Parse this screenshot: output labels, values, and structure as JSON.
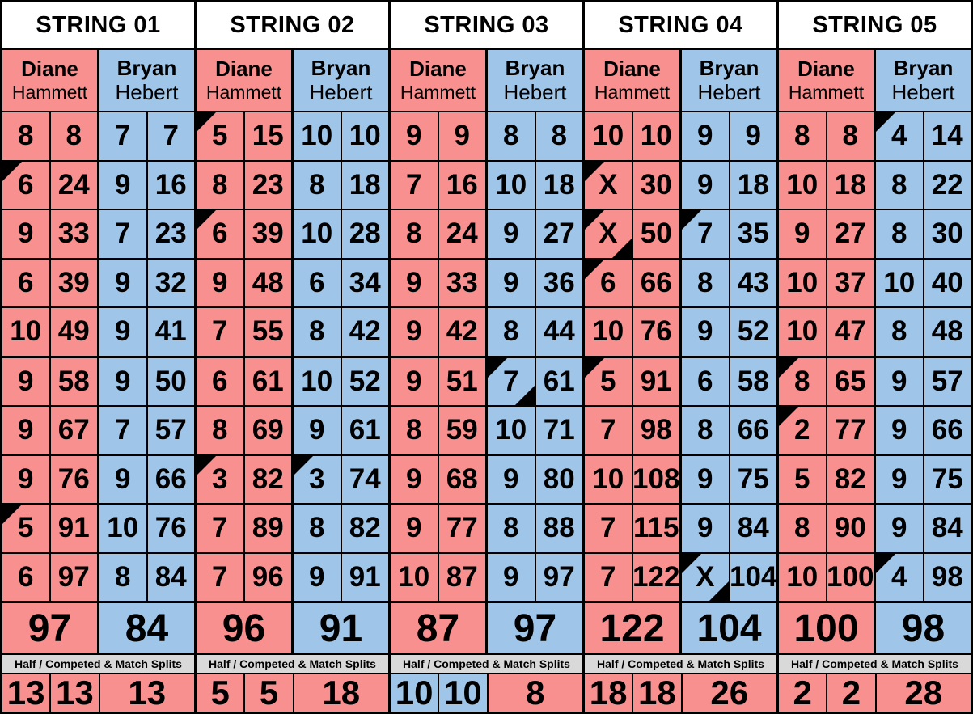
{
  "sheet": {
    "half_label": "Half / Competed & Match Splits",
    "colors": {
      "diane_pink": "#F8908F",
      "bryan_blue": "#9FC5E8",
      "strip_gray": "#D9D9D9",
      "header_white": "#FFFFFF",
      "grid_black": "#000000"
    },
    "strings": [
      {
        "title": "STRING 01",
        "players": [
          {
            "first": "Diane",
            "last": "Hammett",
            "color": "pink",
            "total": "97",
            "frames": [
              {
                "s": "8",
                "t": "8"
              },
              {
                "s": "6",
                "t": "24",
                "c": "tl"
              },
              {
                "s": "9",
                "t": "33"
              },
              {
                "s": "6",
                "t": "39"
              },
              {
                "s": "10",
                "t": "49"
              },
              {
                "s": "9",
                "t": "58"
              },
              {
                "s": "9",
                "t": "67"
              },
              {
                "s": "9",
                "t": "76"
              },
              {
                "s": "5",
                "t": "91",
                "c": "tl"
              },
              {
                "s": "6",
                "t": "97"
              }
            ]
          },
          {
            "first": "Bryan",
            "last": "Hebert",
            "color": "blue",
            "total": "84",
            "frames": [
              {
                "s": "7",
                "t": "7"
              },
              {
                "s": "9",
                "t": "16"
              },
              {
                "s": "7",
                "t": "23"
              },
              {
                "s": "9",
                "t": "32"
              },
              {
                "s": "9",
                "t": "41"
              },
              {
                "s": "9",
                "t": "50"
              },
              {
                "s": "7",
                "t": "57"
              },
              {
                "s": "9",
                "t": "66"
              },
              {
                "s": "10",
                "t": "76"
              },
              {
                "s": "8",
                "t": "84"
              }
            ]
          }
        ],
        "bottom": [
          {
            "v": "13",
            "color": "pink"
          },
          {
            "v": "13",
            "color": "pink"
          },
          {
            "v": "13",
            "color": "pink"
          }
        ]
      },
      {
        "title": "STRING 02",
        "players": [
          {
            "first": "Diane",
            "last": "Hammett",
            "color": "pink",
            "total": "96",
            "frames": [
              {
                "s": "5",
                "t": "15",
                "c": "tl"
              },
              {
                "s": "8",
                "t": "23"
              },
              {
                "s": "6",
                "t": "39",
                "c": "tl"
              },
              {
                "s": "9",
                "t": "48"
              },
              {
                "s": "7",
                "t": "55"
              },
              {
                "s": "6",
                "t": "61"
              },
              {
                "s": "8",
                "t": "69"
              },
              {
                "s": "3",
                "t": "82",
                "c": "tl"
              },
              {
                "s": "7",
                "t": "89"
              },
              {
                "s": "7",
                "t": "96"
              }
            ]
          },
          {
            "first": "Bryan",
            "last": "Hebert",
            "color": "blue",
            "total": "91",
            "frames": [
              {
                "s": "10",
                "t": "10"
              },
              {
                "s": "8",
                "t": "18"
              },
              {
                "s": "10",
                "t": "28"
              },
              {
                "s": "6",
                "t": "34"
              },
              {
                "s": "8",
                "t": "42"
              },
              {
                "s": "10",
                "t": "52"
              },
              {
                "s": "9",
                "t": "61"
              },
              {
                "s": "3",
                "t": "74",
                "c": "tl"
              },
              {
                "s": "8",
                "t": "82"
              },
              {
                "s": "9",
                "t": "91"
              }
            ]
          }
        ],
        "bottom": [
          {
            "v": "5",
            "color": "pink"
          },
          {
            "v": "5",
            "color": "pink"
          },
          {
            "v": "18",
            "color": "pink"
          }
        ]
      },
      {
        "title": "STRING 03",
        "players": [
          {
            "first": "Diane",
            "last": "Hammett",
            "color": "pink",
            "total": "87",
            "frames": [
              {
                "s": "9",
                "t": "9"
              },
              {
                "s": "7",
                "t": "16"
              },
              {
                "s": "8",
                "t": "24"
              },
              {
                "s": "9",
                "t": "33"
              },
              {
                "s": "9",
                "t": "42"
              },
              {
                "s": "9",
                "t": "51"
              },
              {
                "s": "8",
                "t": "59"
              },
              {
                "s": "9",
                "t": "68"
              },
              {
                "s": "9",
                "t": "77"
              },
              {
                "s": "10",
                "t": "87"
              }
            ]
          },
          {
            "first": "Bryan",
            "last": "Hebert",
            "color": "blue",
            "total": "97",
            "frames": [
              {
                "s": "8",
                "t": "8"
              },
              {
                "s": "10",
                "t": "18"
              },
              {
                "s": "9",
                "t": "27"
              },
              {
                "s": "9",
                "t": "36"
              },
              {
                "s": "8",
                "t": "44"
              },
              {
                "s": "7",
                "t": "61",
                "c": "tl br"
              },
              {
                "s": "10",
                "t": "71"
              },
              {
                "s": "9",
                "t": "80"
              },
              {
                "s": "8",
                "t": "88"
              },
              {
                "s": "9",
                "t": "97"
              }
            ]
          }
        ],
        "bottom": [
          {
            "v": "10",
            "color": "blue"
          },
          {
            "v": "10",
            "color": "blue"
          },
          {
            "v": "8",
            "color": "pink"
          }
        ]
      },
      {
        "title": "STRING 04",
        "players": [
          {
            "first": "Diane",
            "last": "Hammett",
            "color": "pink",
            "total": "122",
            "frames": [
              {
                "s": "10",
                "t": "10"
              },
              {
                "s": "X",
                "t": "30",
                "c": "tl"
              },
              {
                "s": "X",
                "t": "50",
                "c": "tl br"
              },
              {
                "s": "6",
                "t": "66",
                "c": "tl"
              },
              {
                "s": "10",
                "t": "76"
              },
              {
                "s": "5",
                "t": "91",
                "c": "tl"
              },
              {
                "s": "7",
                "t": "98"
              },
              {
                "s": "10",
                "t": "108"
              },
              {
                "s": "7",
                "t": "115"
              },
              {
                "s": "7",
                "t": "122"
              }
            ]
          },
          {
            "first": "Bryan",
            "last": "Hebert",
            "color": "blue",
            "total": "104",
            "frames": [
              {
                "s": "9",
                "t": "9"
              },
              {
                "s": "9",
                "t": "18"
              },
              {
                "s": "7",
                "t": "35",
                "c": "tl"
              },
              {
                "s": "8",
                "t": "43"
              },
              {
                "s": "9",
                "t": "52"
              },
              {
                "s": "6",
                "t": "58"
              },
              {
                "s": "8",
                "t": "66"
              },
              {
                "s": "9",
                "t": "75"
              },
              {
                "s": "9",
                "t": "84"
              },
              {
                "s": "X",
                "t": "104",
                "c": "tl br"
              }
            ]
          }
        ],
        "bottom": [
          {
            "v": "18",
            "color": "pink"
          },
          {
            "v": "18",
            "color": "pink"
          },
          {
            "v": "26",
            "color": "pink"
          }
        ]
      },
      {
        "title": "STRING 05",
        "players": [
          {
            "first": "Diane",
            "last": "Hammett",
            "color": "pink",
            "total": "100",
            "frames": [
              {
                "s": "8",
                "t": "8"
              },
              {
                "s": "10",
                "t": "18"
              },
              {
                "s": "9",
                "t": "27"
              },
              {
                "s": "10",
                "t": "37"
              },
              {
                "s": "10",
                "t": "47"
              },
              {
                "s": "8",
                "t": "65",
                "c": "tl"
              },
              {
                "s": "2",
                "t": "77",
                "c": "tl"
              },
              {
                "s": "5",
                "t": "82"
              },
              {
                "s": "8",
                "t": "90"
              },
              {
                "s": "10",
                "t": "100"
              }
            ]
          },
          {
            "first": "Bryan",
            "last": "Hebert",
            "color": "blue",
            "total": "98",
            "frames": [
              {
                "s": "4",
                "t": "14",
                "c": "tl"
              },
              {
                "s": "8",
                "t": "22"
              },
              {
                "s": "8",
                "t": "30"
              },
              {
                "s": "10",
                "t": "40"
              },
              {
                "s": "8",
                "t": "48"
              },
              {
                "s": "9",
                "t": "57"
              },
              {
                "s": "9",
                "t": "66"
              },
              {
                "s": "9",
                "t": "75"
              },
              {
                "s": "9",
                "t": "84"
              },
              {
                "s": "4",
                "t": "98",
                "c": "tl"
              }
            ]
          }
        ],
        "bottom": [
          {
            "v": "2",
            "color": "pink"
          },
          {
            "v": "2",
            "color": "pink"
          },
          {
            "v": "28",
            "color": "pink"
          }
        ]
      }
    ]
  }
}
